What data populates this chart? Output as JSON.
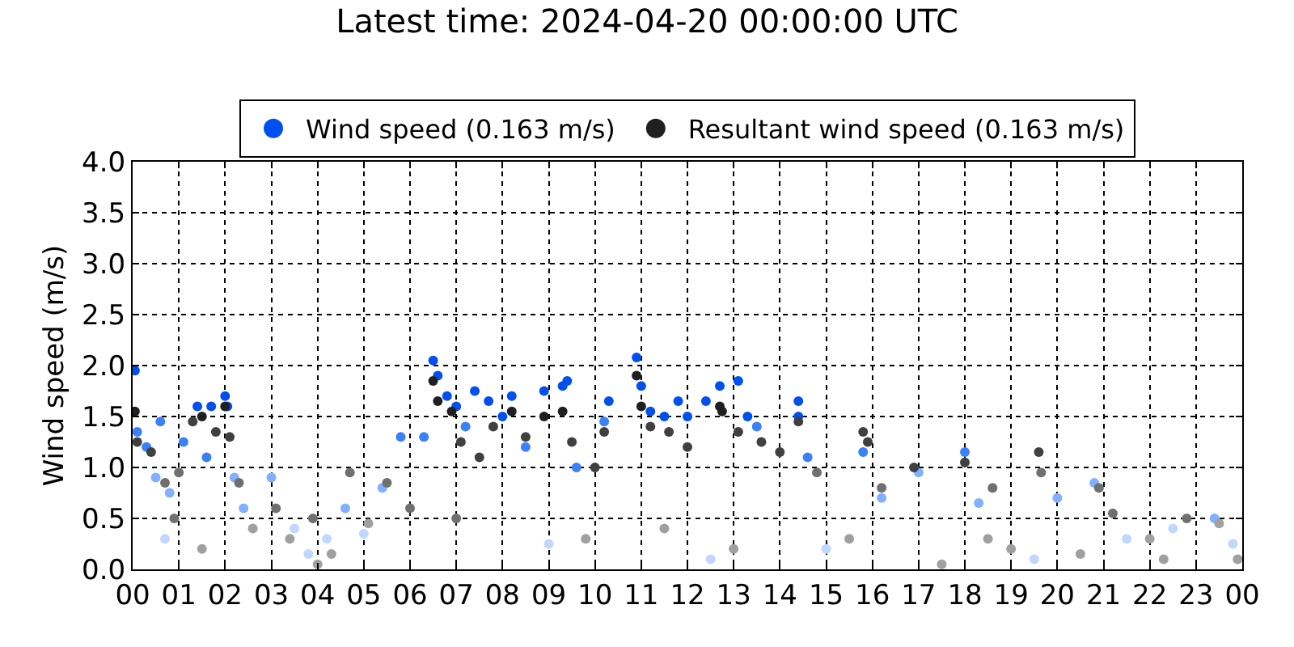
{
  "chart_data": {
    "type": "scatter",
    "title": "Latest time: 2024-04-20 00:00:00 UTC",
    "ylabel": "Wind speed (m/s)",
    "xlim": [
      0,
      24
    ],
    "ylim": [
      0,
      4.0
    ],
    "xticks": [
      {
        "value": 0,
        "label": "00"
      },
      {
        "value": 1,
        "label": "01"
      },
      {
        "value": 2,
        "label": "02"
      },
      {
        "value": 3,
        "label": "03"
      },
      {
        "value": 4,
        "label": "04"
      },
      {
        "value": 5,
        "label": "05"
      },
      {
        "value": 6,
        "label": "06"
      },
      {
        "value": 7,
        "label": "07"
      },
      {
        "value": 8,
        "label": "08"
      },
      {
        "value": 9,
        "label": "09"
      },
      {
        "value": 10,
        "label": "10"
      },
      {
        "value": 11,
        "label": "11"
      },
      {
        "value": 12,
        "label": "12"
      },
      {
        "value": 13,
        "label": "13"
      },
      {
        "value": 14,
        "label": "14"
      },
      {
        "value": 15,
        "label": "15"
      },
      {
        "value": 16,
        "label": "16"
      },
      {
        "value": 17,
        "label": "17"
      },
      {
        "value": 18,
        "label": "18"
      },
      {
        "value": 19,
        "label": "19"
      },
      {
        "value": 20,
        "label": "20"
      },
      {
        "value": 21,
        "label": "21"
      },
      {
        "value": 22,
        "label": "22"
      },
      {
        "value": 23,
        "label": "23"
      },
      {
        "value": 24,
        "label": "00"
      }
    ],
    "yticks": [
      {
        "value": 0,
        "label": "0.0"
      },
      {
        "value": 0.5,
        "label": "0.5"
      },
      {
        "value": 1,
        "label": "1.0"
      },
      {
        "value": 1.5,
        "label": "1.5"
      },
      {
        "value": 2,
        "label": "2.0"
      },
      {
        "value": 2.5,
        "label": "2.5"
      },
      {
        "value": 3,
        "label": "3.0"
      },
      {
        "value": 3.5,
        "label": "3.5"
      },
      {
        "value": 4,
        "label": "4.0"
      }
    ],
    "grid": true,
    "legend": "top",
    "marker": "circle",
    "series": [
      {
        "name": "Wind speed (0.163 m/s)",
        "x": [
          0.05,
          0.1,
          0.3,
          0.5,
          0.6,
          0.8,
          1.1,
          1.4,
          1.6,
          1.7,
          2.0,
          2.05,
          2.2,
          2.4,
          3.0,
          3.5,
          4.2,
          4.6,
          5.0,
          5.4,
          5.8,
          6.3,
          6.5,
          6.6,
          6.8,
          7.0,
          7.2,
          7.4,
          7.7,
          8.0,
          8.2,
          8.5,
          8.9,
          9.3,
          9.4,
          9.6,
          10.2,
          10.3,
          10.9,
          11.0,
          11.2,
          11.5,
          11.8,
          12.0,
          12.4,
          12.7,
          13.1,
          13.3,
          13.5,
          14.4,
          14.4,
          14.6,
          15.8,
          16.2,
          17.0,
          18.0,
          18.3,
          20.0,
          20.8,
          21.5,
          22.5,
          23.4,
          23.8,
          0.7,
          3.8,
          9.0,
          12.5,
          15.0,
          19.5
        ],
        "values": [
          1.95,
          1.35,
          1.2,
          0.9,
          1.45,
          0.75,
          1.25,
          1.6,
          1.1,
          1.6,
          1.7,
          1.6,
          0.9,
          0.6,
          0.9,
          0.4,
          0.3,
          0.6,
          0.35,
          0.8,
          1.3,
          1.3,
          2.05,
          1.9,
          1.7,
          1.6,
          1.4,
          1.75,
          1.65,
          1.5,
          1.7,
          1.2,
          1.75,
          1.8,
          1.85,
          1.0,
          1.45,
          1.65,
          2.08,
          1.8,
          1.55,
          1.5,
          1.65,
          1.5,
          1.65,
          1.8,
          1.85,
          1.5,
          1.4,
          1.65,
          1.5,
          1.1,
          1.15,
          0.7,
          0.95,
          1.15,
          0.65,
          0.7,
          0.85,
          0.3,
          0.4,
          0.5,
          0.25,
          0.3,
          0.15,
          0.25,
          0.1,
          0.2,
          0.1
        ],
        "colors": [
          "#0050f0",
          "#3a80f8",
          "#3a80f8",
          "#80b0ff",
          "#3a80f8",
          "#80b0ff",
          "#3a80f8",
          "#0050f0",
          "#3a80f8",
          "#0050f0",
          "#0050f0",
          "#0050f0",
          "#80b0ff",
          "#80b0ff",
          "#80b0ff",
          "#c0d8ff",
          "#c0d8ff",
          "#80b0ff",
          "#c0d8ff",
          "#80b0ff",
          "#3a80f8",
          "#3a80f8",
          "#0050f0",
          "#0050f0",
          "#0050f0",
          "#0050f0",
          "#3a80f8",
          "#0050f0",
          "#0050f0",
          "#0050f0",
          "#0050f0",
          "#3a80f8",
          "#0050f0",
          "#0050f0",
          "#0050f0",
          "#3a80f8",
          "#3a80f8",
          "#0050f0",
          "#0050f0",
          "#0050f0",
          "#0050f0",
          "#0050f0",
          "#0050f0",
          "#0050f0",
          "#0050f0",
          "#0050f0",
          "#0050f0",
          "#0050f0",
          "#3a80f8",
          "#0050f0",
          "#0050f0",
          "#3a80f8",
          "#3a80f8",
          "#80b0ff",
          "#80b0ff",
          "#3a80f8",
          "#80b0ff",
          "#80b0ff",
          "#80b0ff",
          "#c0d8ff",
          "#c0d8ff",
          "#80b0ff",
          "#c0d8ff",
          "#c0d8ff",
          "#c0d8ff",
          "#c0d8ff",
          "#c0d8ff",
          "#c0d8ff",
          "#c0d8ff"
        ]
      },
      {
        "name": "Resultant wind speed (0.163 m/s)",
        "x": [
          0.05,
          0.1,
          0.4,
          0.7,
          0.9,
          1.0,
          1.3,
          1.5,
          1.8,
          2.0,
          2.1,
          2.3,
          2.6,
          3.1,
          3.4,
          3.9,
          4.3,
          4.7,
          5.1,
          5.5,
          6.0,
          6.5,
          6.6,
          6.9,
          7.1,
          7.5,
          7.8,
          8.2,
          8.5,
          8.9,
          9.3,
          9.5,
          10.0,
          10.2,
          10.9,
          11.0,
          11.2,
          11.6,
          12.0,
          12.7,
          12.75,
          13.1,
          13.6,
          14.0,
          14.4,
          14.8,
          15.8,
          15.9,
          16.2,
          16.9,
          18.0,
          18.6,
          19.6,
          19.65,
          20.9,
          21.2,
          22.0,
          22.8,
          23.5,
          23.9,
          1.5,
          4.0,
          7.0,
          9.8,
          11.5,
          13.0,
          15.5,
          17.5,
          18.5,
          19.0,
          20.5,
          22.3
        ],
        "values": [
          1.55,
          1.25,
          1.15,
          0.85,
          0.5,
          0.95,
          1.45,
          1.5,
          1.35,
          1.6,
          1.3,
          0.85,
          0.4,
          0.6,
          0.3,
          0.5,
          0.15,
          0.95,
          0.45,
          0.85,
          0.6,
          1.85,
          1.65,
          1.55,
          1.25,
          1.1,
          1.4,
          1.55,
          1.3,
          1.5,
          1.55,
          1.25,
          1.0,
          1.35,
          1.9,
          1.6,
          1.4,
          1.35,
          1.2,
          1.6,
          1.55,
          1.35,
          1.25,
          1.15,
          1.45,
          0.95,
          1.35,
          1.25,
          0.8,
          1.0,
          1.05,
          0.8,
          1.15,
          0.95,
          0.8,
          0.55,
          0.3,
          0.5,
          0.45,
          0.1,
          0.2,
          0.05,
          0.5,
          0.3,
          0.4,
          0.2,
          0.3,
          0.05,
          0.3,
          0.2,
          0.15,
          0.1
        ],
        "colors": [
          "#202020",
          "#404040",
          "#404040",
          "#707070",
          "#707070",
          "#707070",
          "#404040",
          "#202020",
          "#404040",
          "#202020",
          "#404040",
          "#707070",
          "#a0a0a0",
          "#707070",
          "#a0a0a0",
          "#707070",
          "#a0a0a0",
          "#707070",
          "#a0a0a0",
          "#707070",
          "#707070",
          "#202020",
          "#202020",
          "#202020",
          "#404040",
          "#404040",
          "#404040",
          "#202020",
          "#404040",
          "#202020",
          "#202020",
          "#404040",
          "#404040",
          "#404040",
          "#202020",
          "#202020",
          "#404040",
          "#404040",
          "#404040",
          "#202020",
          "#202020",
          "#404040",
          "#404040",
          "#404040",
          "#404040",
          "#707070",
          "#404040",
          "#404040",
          "#707070",
          "#404040",
          "#404040",
          "#707070",
          "#404040",
          "#707070",
          "#707070",
          "#707070",
          "#a0a0a0",
          "#707070",
          "#a0a0a0",
          "#a0a0a0",
          "#a0a0a0",
          "#a0a0a0",
          "#707070",
          "#a0a0a0",
          "#a0a0a0",
          "#a0a0a0",
          "#a0a0a0",
          "#a0a0a0",
          "#a0a0a0",
          "#a0a0a0",
          "#a0a0a0",
          "#a0a0a0"
        ]
      }
    ]
  }
}
